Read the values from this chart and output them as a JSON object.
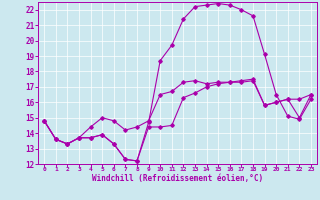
{
  "xlabel": "Windchill (Refroidissement éolien,°C)",
  "xlim": [
    -0.5,
    23.5
  ],
  "ylim": [
    12,
    22.5
  ],
  "xticks": [
    0,
    1,
    2,
    3,
    4,
    5,
    6,
    7,
    8,
    9,
    10,
    11,
    12,
    13,
    14,
    15,
    16,
    17,
    18,
    19,
    20,
    21,
    22,
    23
  ],
  "yticks": [
    12,
    13,
    14,
    15,
    16,
    17,
    18,
    19,
    20,
    21,
    22
  ],
  "bg_color": "#cce8ef",
  "line_color": "#aa00aa",
  "line1_x": [
    0,
    1,
    2,
    3,
    4,
    5,
    6,
    7,
    8,
    9,
    10,
    11,
    12,
    13,
    14,
    15,
    16,
    17,
    18,
    19,
    20,
    21,
    22,
    23
  ],
  "line1_y": [
    14.8,
    13.6,
    13.3,
    13.7,
    13.7,
    13.9,
    13.3,
    12.3,
    12.2,
    14.4,
    14.4,
    14.5,
    16.3,
    16.6,
    17.0,
    17.2,
    17.3,
    17.3,
    17.4,
    15.8,
    16.0,
    16.2,
    16.2,
    16.5
  ],
  "line2_x": [
    0,
    1,
    2,
    3,
    4,
    5,
    6,
    7,
    8,
    9,
    10,
    11,
    12,
    13,
    14,
    15,
    16,
    17,
    18,
    19,
    20,
    21,
    22,
    23
  ],
  "line2_y": [
    14.8,
    13.6,
    13.3,
    13.7,
    13.7,
    13.9,
    13.3,
    12.3,
    12.2,
    14.7,
    18.7,
    19.7,
    21.4,
    22.2,
    22.3,
    22.4,
    22.3,
    22.0,
    21.6,
    19.1,
    16.5,
    15.1,
    14.9,
    16.2
  ],
  "line3_x": [
    0,
    1,
    2,
    3,
    4,
    5,
    6,
    7,
    8,
    9,
    10,
    11,
    12,
    13,
    14,
    15,
    16,
    17,
    18,
    19,
    20,
    21,
    22,
    23
  ],
  "line3_y": [
    14.8,
    13.6,
    13.3,
    13.7,
    14.4,
    15.0,
    14.8,
    14.2,
    14.4,
    14.8,
    16.5,
    16.7,
    17.3,
    17.4,
    17.2,
    17.3,
    17.3,
    17.4,
    17.5,
    15.8,
    16.0,
    16.2,
    15.0,
    16.5
  ]
}
